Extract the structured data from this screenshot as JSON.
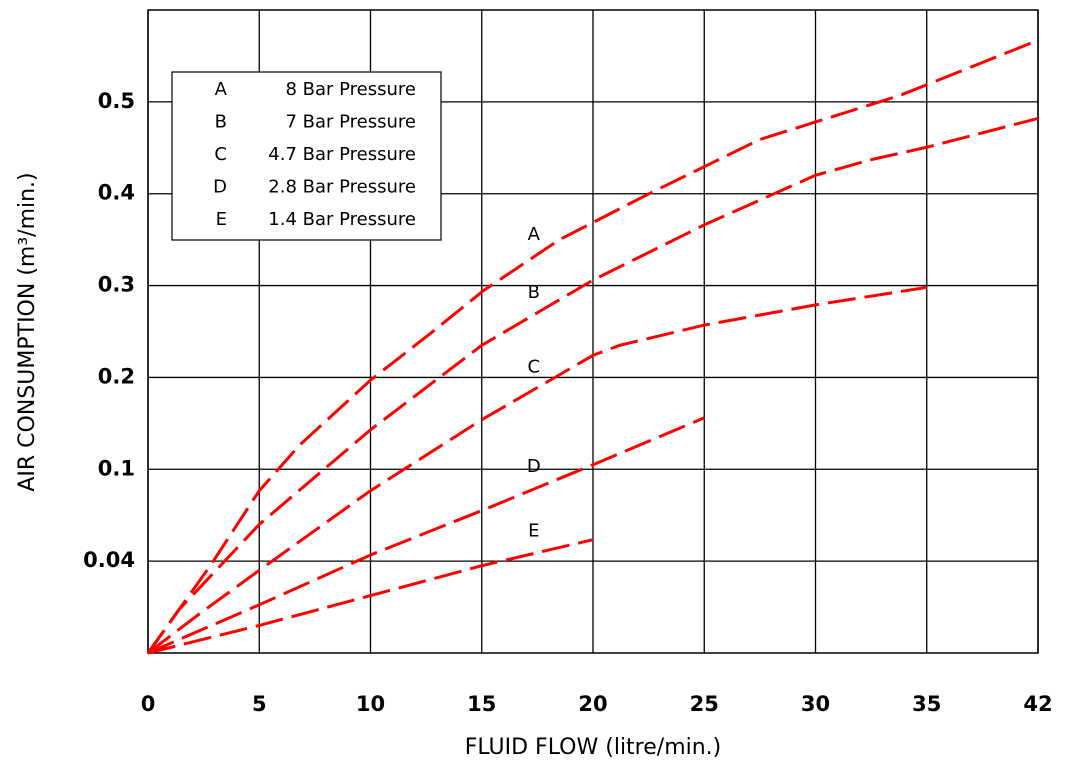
{
  "chart_data": {
    "type": "line",
    "xlabel": "FLUID FLOW (litre/min.)",
    "ylabel": "AIR CONSUMPTION (m³/min.)",
    "xlim": [
      0,
      42
    ],
    "xticks": [
      0,
      5,
      10,
      15,
      20,
      25,
      30,
      35,
      42
    ],
    "xscale": "evenly-spaced-ticks",
    "ylim": [
      0,
      0.6
    ],
    "yticks": [
      0.04,
      0.1,
      0.2,
      0.3,
      0.4,
      0.5
    ],
    "yscale": "evenly-spaced-ticks",
    "grid": true,
    "legend": "upper left",
    "series": [
      {
        "label": "A",
        "name": "8 Bar Pressure",
        "color": "#ff0000",
        "x": [
          0,
          2.8,
          5.0,
          6.8,
          10,
          12.7,
          15.1,
          18.5,
          22.6,
          27.5,
          33.8,
          42
        ],
        "values": [
          0,
          0.038,
          0.086,
          0.126,
          0.197,
          0.248,
          0.295,
          0.35,
          0.401,
          0.459,
          0.507,
          0.567
        ]
      },
      {
        "label": "B",
        "name": "7 Bar Pressure",
        "color": "#ff0000",
        "x": [
          0,
          1.4,
          5,
          10,
          15,
          20,
          25,
          30,
          32.5,
          35.1,
          42
        ],
        "values": [
          0,
          0.019,
          0.064,
          0.143,
          0.235,
          0.306,
          0.366,
          0.42,
          0.437,
          0.451,
          0.482
        ]
      },
      {
        "label": "C",
        "name": "4.7 Bar Pressure",
        "color": "#ff0000",
        "x": [
          0,
          2.3,
          5,
          10,
          15,
          20,
          21.2,
          25,
          30,
          35
        ],
        "values": [
          0,
          0.017,
          0.036,
          0.086,
          0.154,
          0.224,
          0.235,
          0.257,
          0.279,
          0.298
        ]
      },
      {
        "label": "D",
        "name": "2.8 Bar Pressure",
        "color": "#ff0000",
        "x": [
          0,
          5,
          10,
          15,
          20,
          25
        ],
        "values": [
          0,
          0.021,
          0.044,
          0.073,
          0.105,
          0.156
        ]
      },
      {
        "label": "E",
        "name": "1.4 Bar Pressure",
        "color": "#ff0000",
        "x": [
          0,
          5,
          10,
          15,
          20
        ],
        "values": [
          0,
          0.012,
          0.025,
          0.038,
          0.054
        ]
      }
    ]
  }
}
